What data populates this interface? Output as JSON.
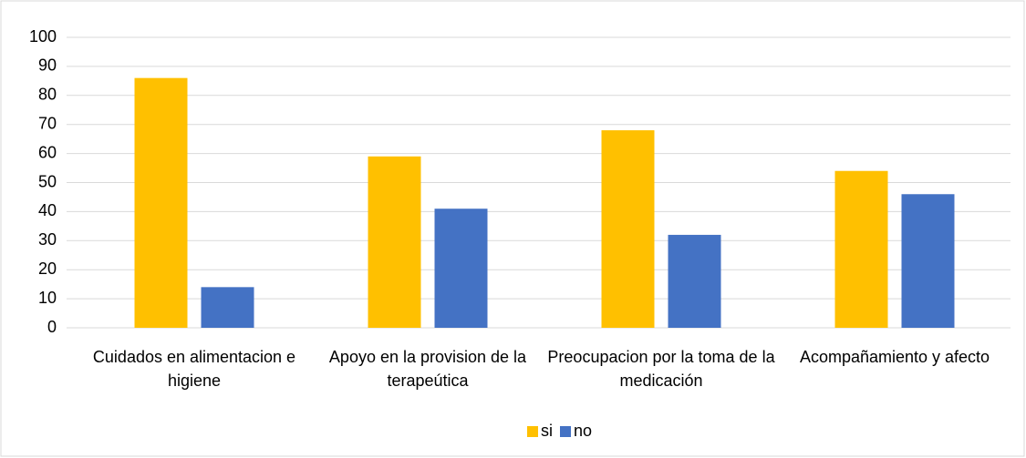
{
  "chart_data": {
    "type": "bar",
    "categories": [
      "Cuidados en alimentacion e higiene",
      "Apoyo en la provision de la terapeútica",
      "Preocupacion por la toma de la medicación",
      "Acompañamiento y afecto"
    ],
    "series": [
      {
        "name": "si",
        "color": "#FFC000",
        "values": [
          86,
          59,
          68,
          54
        ]
      },
      {
        "name": "no",
        "color": "#4472C4",
        "values": [
          14,
          41,
          32,
          46
        ]
      }
    ],
    "ylim": [
      0,
      100
    ],
    "yticks": [
      0,
      10,
      20,
      30,
      40,
      50,
      60,
      70,
      80,
      90,
      100
    ],
    "grid": true,
    "legend": "bottom"
  }
}
